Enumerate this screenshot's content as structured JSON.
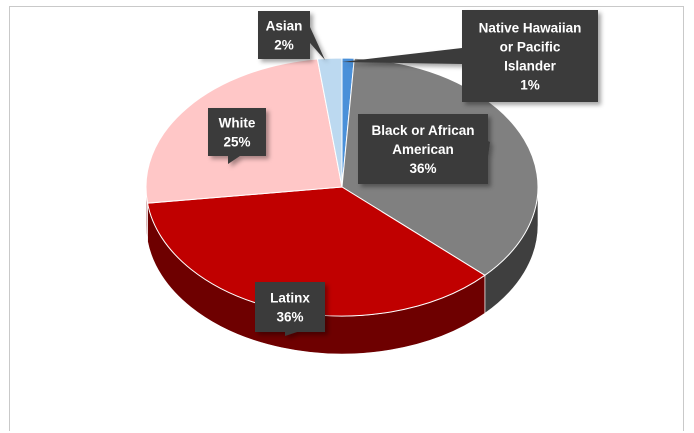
{
  "chart_data": {
    "type": "pie",
    "title": "",
    "slices": [
      {
        "label": "Native Hawaiian or Pacific Islander",
        "value": 1,
        "value_label": "1%",
        "color": "#4a90d9",
        "side_color": "#2e6aa8",
        "callout_lines": [
          "Native Hawaiian",
          "or Pacific",
          "Islander",
          "1%"
        ]
      },
      {
        "label": "Black or African American",
        "value": 36,
        "value_label": "36%",
        "color": "#808080",
        "side_color": "#3f3f3f",
        "callout_lines": [
          "Black or African",
          "American",
          "36%"
        ]
      },
      {
        "label": "Latinx",
        "value": 36,
        "value_label": "36%",
        "color": "#c00000",
        "side_color": "#6e0000",
        "callout_lines": [
          "Latinx",
          "36%"
        ]
      },
      {
        "label": "White",
        "value": 25,
        "value_label": "25%",
        "color": "#ffc7c7",
        "side_color": "#c99a9a",
        "callout_lines": [
          "White",
          "25%"
        ]
      },
      {
        "label": "Asian",
        "value": 2,
        "value_label": "2%",
        "color": "#bcd9f0",
        "side_color": "#8fb0c8",
        "callout_lines": [
          "Asian",
          "2%"
        ]
      }
    ],
    "style": "3d-pie",
    "legend": "none",
    "callout_color": "#3a3a3a"
  }
}
